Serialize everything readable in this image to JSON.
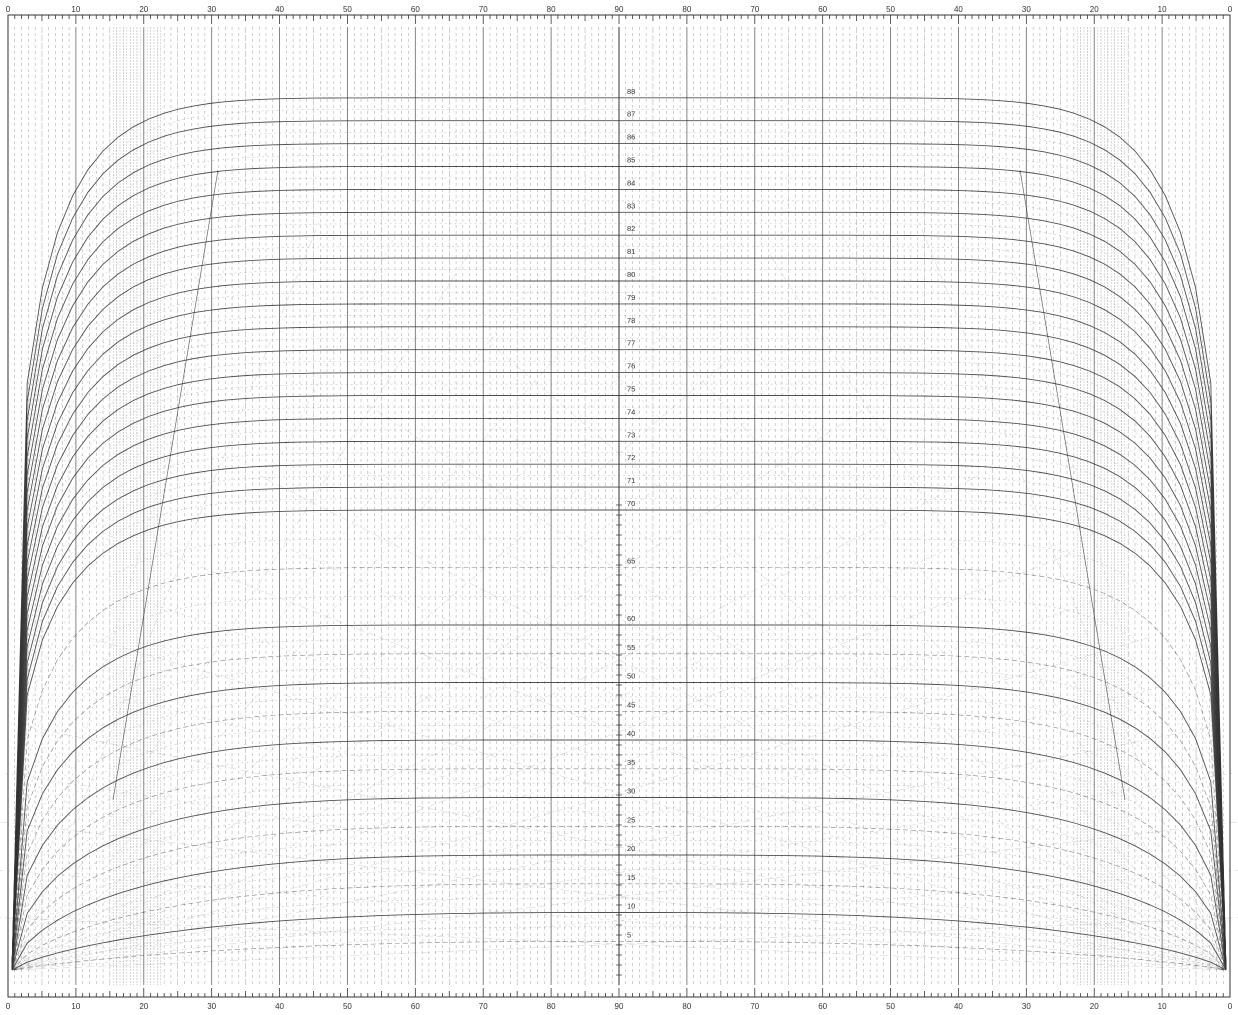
{
  "diagram": {
    "scale_top_labels": [
      "0",
      "10",
      "20",
      "30",
      "40",
      "50",
      "60",
      "70",
      "80",
      "90",
      "80",
      "70",
      "60",
      "50",
      "40",
      "30",
      "20",
      "10",
      "0"
    ],
    "scale_bottom_labels": [
      "0",
      "10",
      "20",
      "30",
      "40",
      "50",
      "60",
      "70",
      "80",
      "90",
      "80",
      "70",
      "60",
      "50",
      "40",
      "30",
      "20",
      "10",
      "0"
    ],
    "curve_labels": [
      "5",
      "10",
      "15",
      "20",
      "25",
      "30",
      "35",
      "40",
      "45",
      "50",
      "55",
      "60",
      "65",
      "70",
      "71",
      "72",
      "73",
      "74",
      "75",
      "76",
      "77",
      "78",
      "79",
      "80",
      "81",
      "82",
      "83",
      "84",
      "85",
      "86",
      "87",
      "88"
    ],
    "colors": {
      "ink": "#333333",
      "grid": "#555555",
      "background": "#ffffff"
    }
  }
}
